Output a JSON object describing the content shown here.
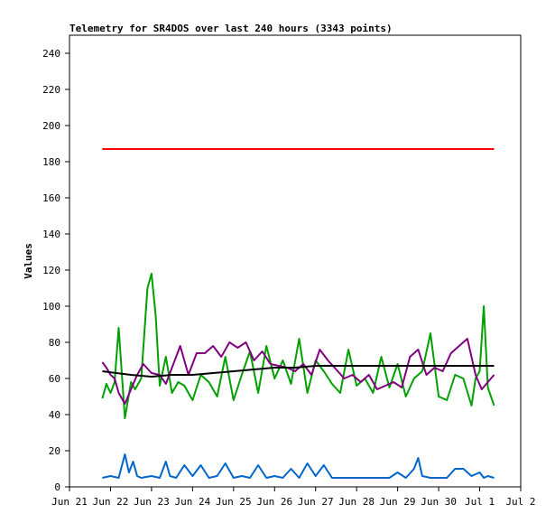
{
  "chart_data": {
    "type": "line",
    "title": "Telemetry for SR4DOS over last 240 hours (3343 points)",
    "ylabel": "Values",
    "xlabel": "",
    "ylim": [
      0,
      250
    ],
    "xlim": [
      0,
      11
    ],
    "y_ticks": [
      0,
      20,
      40,
      60,
      80,
      100,
      120,
      140,
      160,
      180,
      200,
      220,
      240
    ],
    "x_ticks": [
      {
        "x": 0,
        "label": "Jun 21"
      },
      {
        "x": 1,
        "label": "Jun 22"
      },
      {
        "x": 2,
        "label": "Jun 23"
      },
      {
        "x": 3,
        "label": "Jun 24"
      },
      {
        "x": 4,
        "label": "Jun 25"
      },
      {
        "x": 5,
        "label": "Jun 26"
      },
      {
        "x": 6,
        "label": "Jun 27"
      },
      {
        "x": 7,
        "label": "Jun 28"
      },
      {
        "x": 8,
        "label": "Jun 29"
      },
      {
        "x": 9,
        "label": "Jun 30"
      },
      {
        "x": 10,
        "label": "Jul 1"
      },
      {
        "x": 11,
        "label": "Jul 2"
      }
    ],
    "grid": false,
    "legend": "none",
    "series": [
      {
        "color": "#ff0000",
        "x": [
          0.8,
          1.2,
          1.6,
          2.0,
          2.5,
          3.0,
          3.5,
          4.0,
          4.5,
          5.0,
          5.5,
          6.0,
          6.5,
          7.0,
          7.5,
          8.0,
          8.5,
          9.0,
          9.5,
          10.0,
          10.35
        ],
        "y": [
          187,
          187,
          187,
          187,
          187,
          187,
          187,
          187,
          187,
          187,
          187,
          187,
          187,
          187,
          187,
          187,
          187,
          187,
          187,
          187,
          187
        ]
      },
      {
        "color": "#00a000",
        "x": [
          0.8,
          0.9,
          1.0,
          1.1,
          1.2,
          1.35,
          1.5,
          1.6,
          1.75,
          1.9,
          2.0,
          2.1,
          2.2,
          2.35,
          2.5,
          2.65,
          2.8,
          3.0,
          3.2,
          3.4,
          3.6,
          3.8,
          4.0,
          4.2,
          4.4,
          4.6,
          4.8,
          5.0,
          5.2,
          5.4,
          5.6,
          5.8,
          6.0,
          6.2,
          6.4,
          6.6,
          6.8,
          7.0,
          7.2,
          7.4,
          7.6,
          7.8,
          8.0,
          8.2,
          8.4,
          8.6,
          8.8,
          9.0,
          9.2,
          9.4,
          9.6,
          9.8,
          9.9,
          10.0,
          10.1,
          10.2,
          10.35
        ],
        "y": [
          49,
          57,
          52,
          58,
          88,
          38,
          58,
          54,
          60,
          110,
          118,
          95,
          56,
          72,
          52,
          58,
          56,
          48,
          62,
          58,
          50,
          72,
          48,
          62,
          75,
          52,
          78,
          60,
          70,
          57,
          82,
          52,
          70,
          64,
          57,
          52,
          76,
          56,
          60,
          52,
          72,
          55,
          68,
          50,
          60,
          64,
          85,
          50,
          48,
          62,
          60,
          45,
          60,
          64,
          100,
          55,
          45
        ]
      },
      {
        "color": "#800080",
        "x": [
          0.8,
          0.9,
          1.0,
          1.1,
          1.2,
          1.35,
          1.5,
          1.65,
          1.8,
          2.0,
          2.2,
          2.35,
          2.5,
          2.7,
          2.9,
          3.1,
          3.3,
          3.5,
          3.7,
          3.9,
          4.1,
          4.3,
          4.5,
          4.7,
          4.9,
          5.1,
          5.3,
          5.5,
          5.7,
          5.9,
          6.1,
          6.3,
          6.5,
          6.7,
          6.9,
          7.1,
          7.3,
          7.5,
          7.7,
          7.9,
          8.1,
          8.3,
          8.5,
          8.7,
          8.9,
          9.1,
          9.3,
          9.5,
          9.7,
          9.9,
          10.05,
          10.2,
          10.35
        ],
        "y": [
          69,
          66,
          62,
          60,
          52,
          46,
          54,
          62,
          68,
          63,
          62,
          57,
          66,
          78,
          62,
          74,
          74,
          78,
          72,
          80,
          77,
          80,
          70,
          75,
          68,
          67,
          66,
          64,
          68,
          62,
          76,
          70,
          65,
          60,
          62,
          58,
          62,
          54,
          56,
          58,
          55,
          72,
          76,
          62,
          66,
          64,
          74,
          78,
          82,
          62,
          54,
          58,
          62
        ]
      },
      {
        "color": "#000000",
        "x": [
          0.8,
          1.5,
          2.0,
          2.5,
          3.0,
          3.5,
          4.0,
          4.5,
          5.0,
          5.5,
          6.0,
          6.5,
          7.0,
          7.5,
          8.0,
          8.5,
          9.0,
          9.5,
          10.0,
          10.35
        ],
        "y": [
          64,
          62,
          61,
          62,
          62,
          63,
          64,
          65,
          66,
          66,
          67,
          67,
          67,
          67,
          67,
          67,
          67,
          67,
          67,
          67
        ]
      },
      {
        "color": "#0066cc",
        "x": [
          0.8,
          1.0,
          1.2,
          1.35,
          1.45,
          1.55,
          1.65,
          1.75,
          2.0,
          2.2,
          2.35,
          2.45,
          2.6,
          2.8,
          3.0,
          3.2,
          3.4,
          3.6,
          3.8,
          4.0,
          4.2,
          4.4,
          4.6,
          4.8,
          5.0,
          5.2,
          5.4,
          5.6,
          5.8,
          6.0,
          6.2,
          6.4,
          6.6,
          6.8,
          7.0,
          7.2,
          7.4,
          7.6,
          7.8,
          8.0,
          8.2,
          8.4,
          8.5,
          8.6,
          8.8,
          9.0,
          9.2,
          9.4,
          9.6,
          9.8,
          10.0,
          10.1,
          10.2,
          10.35
        ],
        "y": [
          5,
          6,
          5,
          18,
          8,
          14,
          6,
          5,
          6,
          5,
          14,
          6,
          5,
          12,
          6,
          12,
          5,
          6,
          13,
          5,
          6,
          5,
          12,
          5,
          6,
          5,
          10,
          5,
          13,
          6,
          12,
          5,
          5,
          5,
          5,
          5,
          5,
          5,
          5,
          8,
          5,
          10,
          16,
          6,
          5,
          5,
          5,
          10,
          10,
          6,
          8,
          5,
          6,
          5
        ]
      }
    ]
  }
}
